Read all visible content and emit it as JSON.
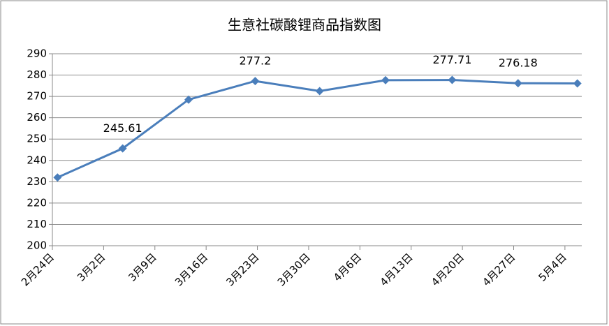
{
  "chart_data": {
    "type": "line",
    "title": "生意社碳酸锂商品指数图",
    "x": [
      0.7,
      9.6,
      18.6,
      27.7,
      36.5,
      45.5,
      54.6,
      63.6,
      71.7
    ],
    "series": [
      {
        "name": "生意社碳酸锂商品指数",
        "color": "#4a7ebb",
        "values": [
          232,
          245.61,
          268.5,
          277.2,
          272.5,
          277.6,
          277.71,
          276.18,
          276.1
        ],
        "value_labels": [
          null,
          "245.61",
          null,
          "277.2",
          null,
          null,
          "277.71",
          "276.18",
          null
        ]
      }
    ],
    "xlim": [
      0,
      72.3
    ],
    "xticks": [
      {
        "value": 0,
        "label": "2月24日"
      },
      {
        "value": 7,
        "label": "3月2日"
      },
      {
        "value": 14,
        "label": "3月9日"
      },
      {
        "value": 21,
        "label": "3月16日"
      },
      {
        "value": 28,
        "label": "3月23日"
      },
      {
        "value": 35,
        "label": "3月30日"
      },
      {
        "value": 42,
        "label": "4月6日"
      },
      {
        "value": 49,
        "label": "4月13日"
      },
      {
        "value": 56,
        "label": "4月20日"
      },
      {
        "value": 63,
        "label": "4月27日"
      },
      {
        "value": 70,
        "label": "5月4日"
      }
    ],
    "ylim": [
      200,
      290
    ],
    "yticks": [
      200,
      210,
      220,
      230,
      240,
      250,
      260,
      270,
      280,
      290
    ],
    "grid": true
  }
}
